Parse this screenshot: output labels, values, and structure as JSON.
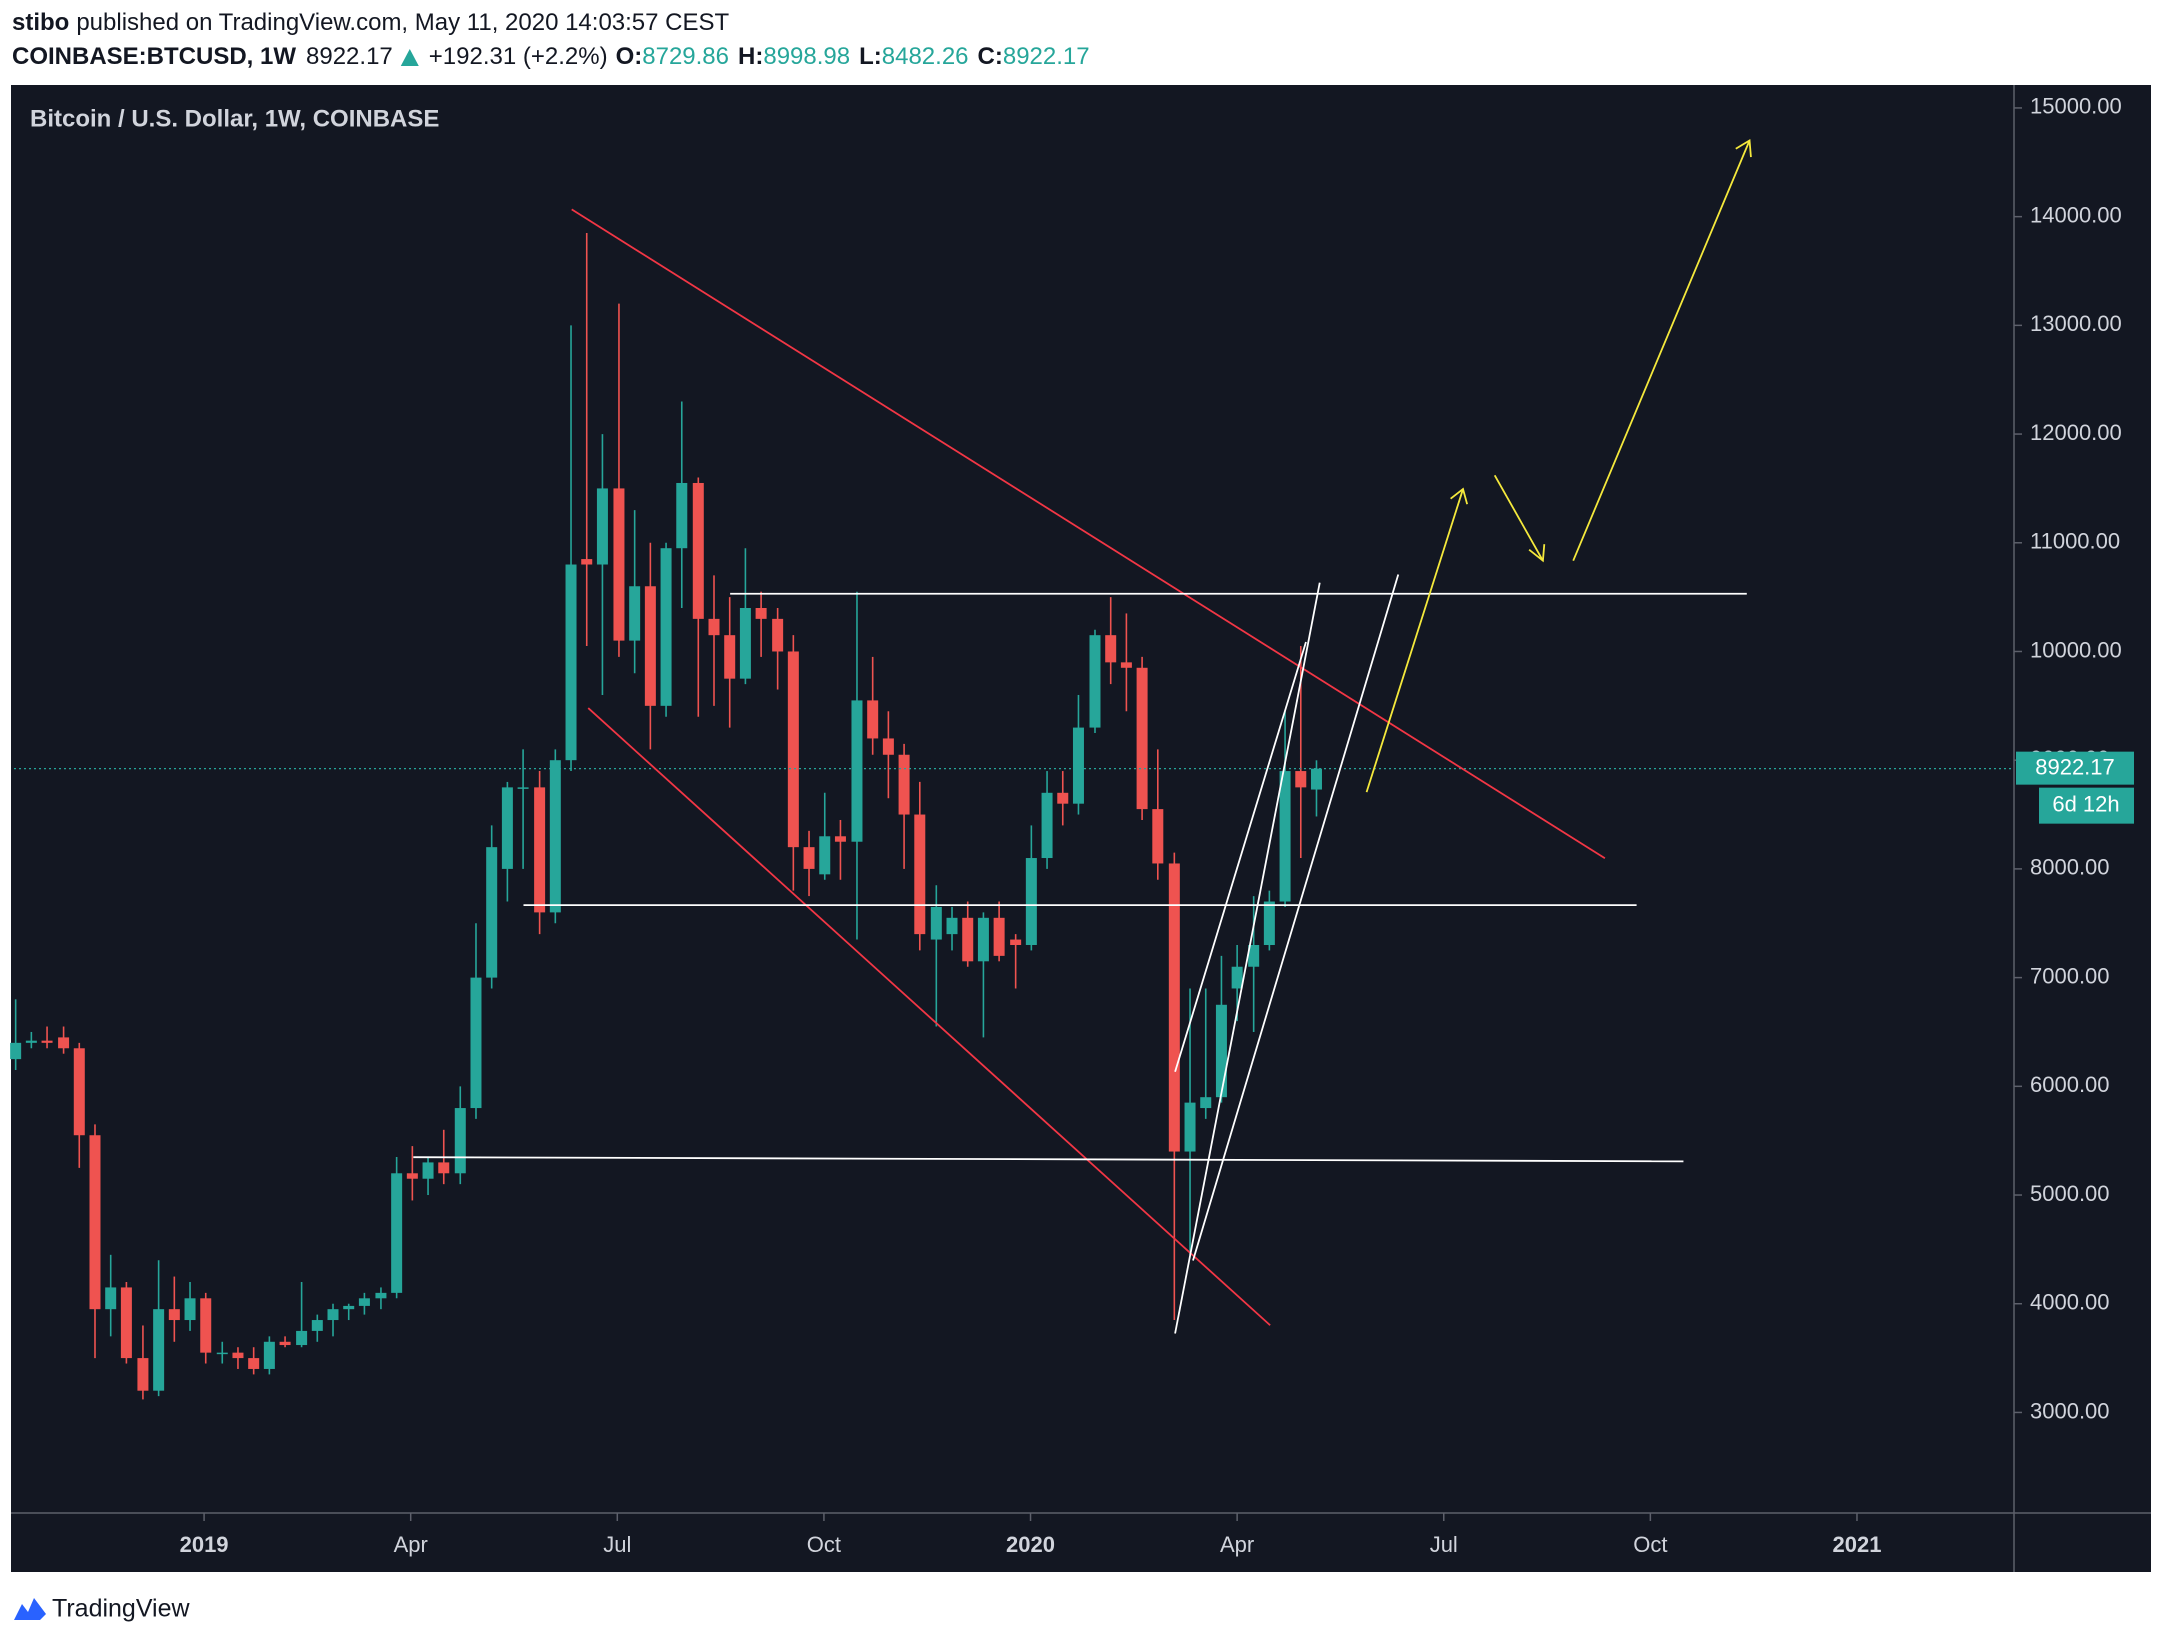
{
  "header": {
    "author": "stibo",
    "published": "published on TradingView.com, May 11, 2020 14:03:57 CEST",
    "symbol": "COINBASE:BTCUSD, 1W",
    "change_label": "+192.31 (+2.2%)",
    "ohlc_labels": [
      "O:",
      "H:",
      "L:",
      "C:"
    ]
  },
  "footer": {
    "brand": "TradingView"
  },
  "chart_data": {
    "type": "candlestick",
    "title": "Bitcoin / U.S. Dollar, 1W, COINBASE",
    "x": [
      2018.772,
      2018.791,
      2018.81,
      2018.83,
      2018.849,
      2018.868,
      2018.887,
      2018.906,
      2018.926,
      2018.945,
      2018.964,
      2018.983,
      2019.002,
      2019.022,
      2019.041,
      2019.06,
      2019.079,
      2019.098,
      2019.118,
      2019.137,
      2019.156,
      2019.175,
      2019.194,
      2019.214,
      2019.233,
      2019.252,
      2019.271,
      2019.29,
      2019.31,
      2019.329,
      2019.348,
      2019.367,
      2019.386,
      2019.406,
      2019.425,
      2019.444,
      2019.463,
      2019.482,
      2019.502,
      2019.521,
      2019.54,
      2019.559,
      2019.578,
      2019.598,
      2019.617,
      2019.636,
      2019.655,
      2019.674,
      2019.694,
      2019.713,
      2019.732,
      2019.751,
      2019.77,
      2019.79,
      2019.809,
      2019.828,
      2019.847,
      2019.866,
      2019.886,
      2019.905,
      2019.924,
      2019.943,
      2019.962,
      2019.982,
      2020.001,
      2020.02,
      2020.039,
      2020.058,
      2020.078,
      2020.097,
      2020.116,
      2020.135,
      2020.154,
      2020.174,
      2020.193,
      2020.212,
      2020.231,
      2020.25,
      2020.27,
      2020.289,
      2020.308,
      2020.327,
      2020.346
    ],
    "open": [
      6250,
      6400,
      6420,
      6450,
      6350,
      5550,
      3950,
      4150,
      3500,
      3200,
      3950,
      3850,
      4050,
      3550,
      3550,
      3500,
      3400,
      3650,
      3620,
      3750,
      3850,
      3950,
      3980,
      4050,
      4100,
      5200,
      5150,
      5300,
      5200,
      5800,
      7000,
      8000,
      8750,
      8750,
      7600,
      9000,
      10850,
      10800,
      11500,
      10100,
      10600,
      9500,
      10950,
      11550,
      10300,
      10150,
      9750,
      10400,
      10300,
      10000,
      8200,
      7950,
      8300,
      8250,
      9550,
      9200,
      9050,
      8500,
      7350,
      7400,
      7550,
      7150,
      7550,
      7350,
      7300,
      8100,
      8700,
      8600,
      9300,
      10150,
      9900,
      9850,
      8550,
      8050,
      5400,
      5800,
      5900,
      6900,
      7100,
      7300,
      7700,
      8900,
      8729.86
    ],
    "high": [
      6800,
      6500,
      6550,
      6550,
      6400,
      5650,
      4450,
      4200,
      3800,
      4400,
      4250,
      4200,
      4100,
      3650,
      3600,
      3600,
      3700,
      3700,
      4200,
      3900,
      4000,
      4000,
      4100,
      4150,
      5350,
      5450,
      5350,
      5600,
      6000,
      7500,
      8400,
      8800,
      9100,
      8900,
      9100,
      13000,
      13850,
      12000,
      13200,
      11300,
      11000,
      11000,
      12300,
      11600,
      10700,
      10500,
      10950,
      10550,
      10400,
      10150,
      8350,
      8700,
      8450,
      10550,
      9950,
      9450,
      9150,
      8800,
      7850,
      7650,
      7700,
      7600,
      7700,
      7400,
      8400,
      8900,
      8900,
      9600,
      10200,
      10500,
      10350,
      9950,
      9100,
      8150,
      6900,
      6900,
      7200,
      7300,
      7750,
      7800,
      9450,
      10050,
      8998.98
    ],
    "low": [
      6150,
      6350,
      6350,
      6300,
      5250,
      3500,
      3700,
      3450,
      3120,
      3150,
      3650,
      3750,
      3450,
      3450,
      3400,
      3350,
      3350,
      3600,
      3600,
      3650,
      3700,
      3850,
      3900,
      3950,
      4050,
      4950,
      5000,
      5100,
      5100,
      5700,
      6900,
      7700,
      8000,
      7400,
      7500,
      8900,
      10050,
      9600,
      9950,
      9800,
      9100,
      9400,
      10400,
      9400,
      9500,
      9300,
      9700,
      9950,
      9650,
      7800,
      7750,
      7900,
      7900,
      7350,
      9050,
      8650,
      8000,
      7250,
      6550,
      7250,
      7100,
      6450,
      7150,
      6900,
      7250,
      8000,
      8400,
      8500,
      9250,
      9700,
      9450,
      8450,
      7900,
      3850,
      4450,
      5700,
      5850,
      6600,
      6500,
      7250,
      7650,
      8100,
      8482.26
    ],
    "close": [
      6400,
      6420,
      6400,
      6350,
      5550,
      3950,
      4150,
      3500,
      3200,
      3950,
      3850,
      4050,
      3550,
      3550,
      3500,
      3400,
      3650,
      3620,
      3750,
      3850,
      3950,
      3980,
      4050,
      4100,
      5200,
      5150,
      5300,
      5200,
      5800,
      7000,
      8200,
      8750,
      8750,
      7600,
      9000,
      10800,
      10800,
      11500,
      10100,
      10600,
      9500,
      10950,
      11550,
      10300,
      10150,
      9750,
      10400,
      10300,
      10000,
      8200,
      8000,
      8300,
      8250,
      9550,
      9200,
      9050,
      8500,
      7400,
      7650,
      7550,
      7150,
      7550,
      7200,
      7300,
      8100,
      8700,
      8600,
      9300,
      10150,
      9900,
      9850,
      8550,
      8050,
      5400,
      5850,
      5900,
      6750,
      7100,
      7300,
      7700,
      8900,
      8750,
      8922.17
    ],
    "up_color": "#26a69a",
    "down_color": "#ef5350",
    "countdown": "6d 12h",
    "xlim": [
      2018.77,
      2021.19
    ],
    "xticks": [
      2019,
      {
        "value": 2019.25,
        "label": "Apr"
      },
      {
        "value": 2019.5,
        "label": "Jul"
      },
      {
        "value": 2019.75,
        "label": "Oct"
      },
      2020,
      {
        "value": 2020.25,
        "label": "Apr"
      },
      {
        "value": 2020.5,
        "label": "Jul"
      },
      {
        "value": 2020.75,
        "label": "Oct"
      },
      2021
    ],
    "ylim": [
      2075,
      15165
    ],
    "yticks": [
      {
        "value": 3000,
        "label": "3000.00"
      },
      {
        "value": 4000,
        "label": "4000.00"
      },
      {
        "value": 5000,
        "label": "5000.00"
      },
      {
        "value": 6000,
        "label": "6000.00"
      },
      {
        "value": 7000,
        "label": "7000.00"
      },
      {
        "value": 8000,
        "label": "8000.00"
      },
      {
        "value": 9000,
        "label": "9000.00"
      },
      {
        "value": 10000,
        "label": "10000.00"
      },
      {
        "value": 11000,
        "label": "11000.00"
      },
      {
        "value": 12000,
        "label": "12000.00"
      },
      {
        "value": 13000,
        "label": "13000.00"
      },
      {
        "value": 14000,
        "label": "14000.00"
      },
      {
        "value": 15000,
        "label": "15000.00"
      }
    ],
    "grid": false
  }
}
